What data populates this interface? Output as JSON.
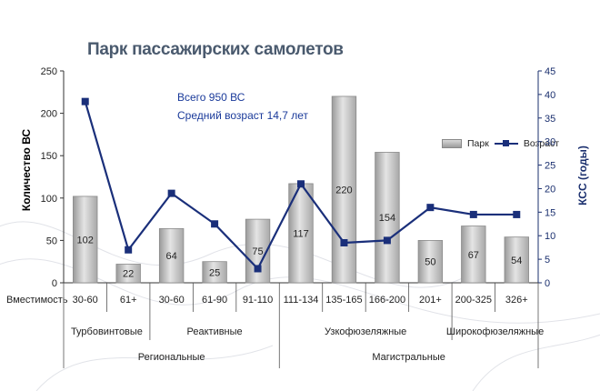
{
  "title": "Парк пассажирских самолетов",
  "info": {
    "total": "Всего  950 ВС",
    "avg_age": "Средний возраст 14,7 лет"
  },
  "colors": {
    "bar": "#bdbdbd",
    "line": "#1a2f7a"
  },
  "chart_data": {
    "type": "bar",
    "title": "Парк пассажирских самолетов",
    "categories": [
      "30-60",
      "61+",
      "30-60",
      "61-90",
      "91-110",
      "111-134",
      "135-165",
      "166-200",
      "201+",
      "200-325",
      "326+"
    ],
    "series": [
      {
        "name": "Парк",
        "type": "bar",
        "axis": "left",
        "values": [
          102,
          22,
          64,
          25,
          75,
          117,
          220,
          154,
          50,
          67,
          54
        ]
      },
      {
        "name": "Возраст",
        "type": "line",
        "axis": "right",
        "values": [
          38.5,
          7,
          19,
          12.5,
          3,
          21,
          8.5,
          9,
          16,
          14.5,
          14.5
        ]
      }
    ],
    "ylabel": "Количество ВС",
    "ylabel_right": "КСС (годы)",
    "xlabel": "Вместимость",
    "ylim": [
      0,
      250
    ],
    "yticks": [
      0,
      50,
      100,
      150,
      200,
      250
    ],
    "ylim_right": [
      0,
      45
    ],
    "yticks_right": [
      0,
      5,
      10,
      15,
      20,
      25,
      30,
      35,
      40,
      45
    ],
    "legend": "top-right",
    "grid": false,
    "groups_level1": [
      {
        "label": "Турбовинтовые",
        "span": [
          0,
          1
        ]
      },
      {
        "label": "Реактивные",
        "span": [
          2,
          4
        ]
      },
      {
        "label": "Узкофюзеляжные",
        "span": [
          5,
          8
        ]
      },
      {
        "label": "Широкофюзеляжные",
        "span": [
          9,
          10
        ]
      }
    ],
    "groups_level2": [
      {
        "label": "Региональные",
        "span": [
          0,
          4
        ]
      },
      {
        "label": "Магистральные",
        "span": [
          5,
          10
        ]
      }
    ]
  }
}
